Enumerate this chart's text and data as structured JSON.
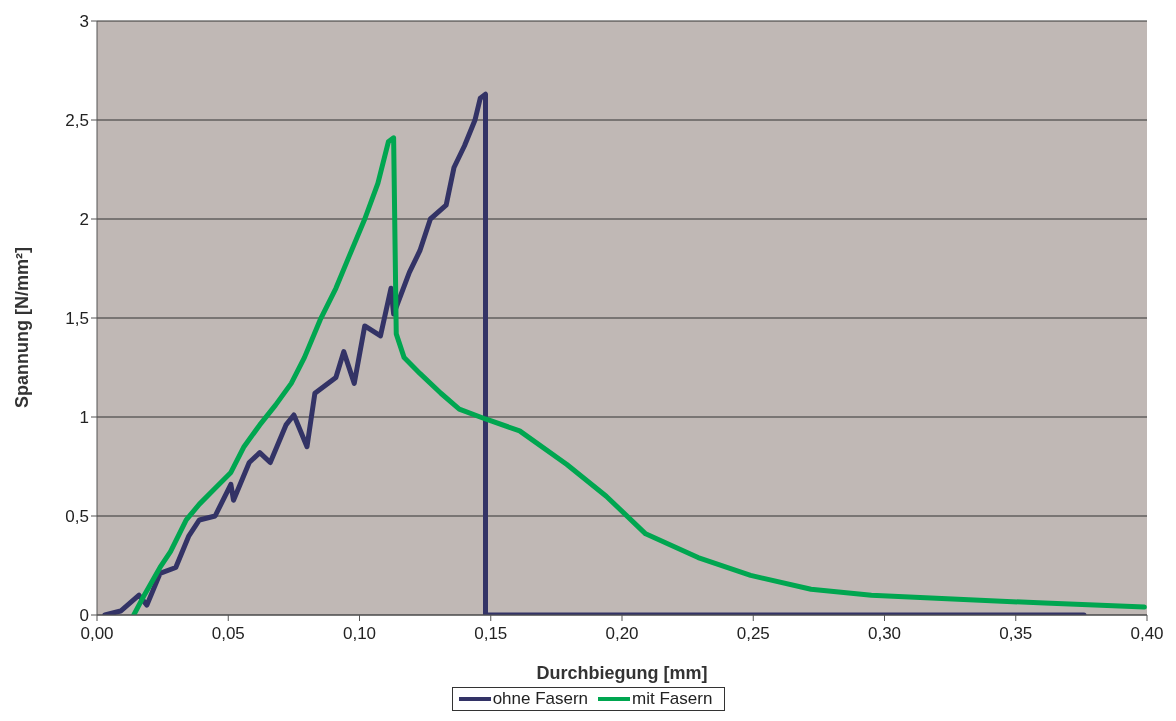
{
  "chart_data": {
    "type": "line",
    "xlabel": "Durchbiegung [mm]",
    "ylabel": "Spannung [N/mm²]",
    "xlim": [
      0,
      0.4
    ],
    "xticks": [
      {
        "value": 0,
        "label": "0,00"
      },
      {
        "value": 0.05,
        "label": "0,05"
      },
      {
        "value": 0.1,
        "label": "0,10"
      },
      {
        "value": 0.15,
        "label": "0,15"
      },
      {
        "value": 0.2,
        "label": "0,20"
      },
      {
        "value": 0.25,
        "label": "0,25"
      },
      {
        "value": 0.3,
        "label": "0,30"
      },
      {
        "value": 0.35,
        "label": "0,35"
      },
      {
        "value": 0.4,
        "label": "0,40"
      }
    ],
    "ylim": [
      0,
      3
    ],
    "yticks": [
      0,
      {
        "value": 0.5,
        "label": "0,5"
      },
      1,
      {
        "value": 1.5,
        "label": "1,5"
      },
      2,
      {
        "value": 2.5,
        "label": "2,5"
      },
      3
    ],
    "grid": "y",
    "legend": "bottom",
    "marker": "none",
    "line_style": "solid",
    "series": [
      {
        "name": "ohne Fasern",
        "color": "#333366",
        "x": [
          0.003,
          0.009,
          0.016,
          0.019,
          0.024,
          0.03,
          0.035,
          0.039,
          0.045,
          0.051,
          0.052,
          0.058,
          0.062,
          0.066,
          0.072,
          0.075,
          0.08,
          0.083,
          0.091,
          0.094,
          0.098,
          0.102,
          0.108,
          0.112,
          0.113,
          0.119,
          0.123,
          0.127,
          0.133,
          0.136,
          0.14,
          0.144,
          0.146,
          0.148,
          0.148,
          0.376
        ],
        "values": [
          0,
          0.02,
          0.1,
          0.05,
          0.21,
          0.24,
          0.4,
          0.48,
          0.5,
          0.66,
          0.58,
          0.77,
          0.82,
          0.77,
          0.96,
          1.01,
          0.85,
          1.12,
          1.2,
          1.33,
          1.17,
          1.46,
          1.41,
          1.65,
          1.52,
          1.73,
          1.84,
          2.0,
          2.07,
          2.26,
          2.37,
          2.5,
          2.61,
          2.63,
          0,
          0
        ]
      },
      {
        "name": "mit Fasern",
        "color": "#00a650",
        "x": [
          0.014,
          0.018,
          0.024,
          0.028,
          0.034,
          0.039,
          0.045,
          0.051,
          0.056,
          0.062,
          0.068,
          0.074,
          0.079,
          0.085,
          0.091,
          0.096,
          0.102,
          0.107,
          0.111,
          0.113,
          0.114,
          0.117,
          0.123,
          0.131,
          0.138,
          0.148,
          0.161,
          0.179,
          0.194,
          0.209,
          0.229,
          0.249,
          0.272,
          0.295,
          0.328,
          0.361,
          0.399
        ],
        "values": [
          0,
          0.1,
          0.24,
          0.32,
          0.48,
          0.56,
          0.64,
          0.72,
          0.85,
          0.96,
          1.06,
          1.17,
          1.3,
          1.49,
          1.65,
          1.81,
          2.0,
          2.18,
          2.39,
          2.41,
          1.42,
          1.3,
          1.22,
          1.12,
          1.04,
          0.99,
          0.93,
          0.76,
          0.6,
          0.41,
          0.29,
          0.2,
          0.13,
          0.1,
          0.08,
          0.06,
          0.04
        ]
      }
    ]
  }
}
